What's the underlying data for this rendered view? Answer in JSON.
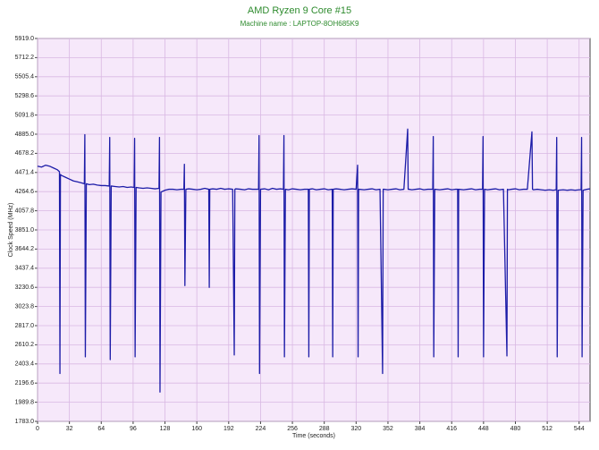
{
  "chart_data": {
    "type": "line",
    "title": "AMD Ryzen 9 Core #15",
    "subtitle": "Machine name : LAPTOP-8OH685K9",
    "x_label": "Time (seconds)",
    "y_label": "Clock Speed (MHz)",
    "color": "#1c1ca8",
    "grid": true,
    "xlim": [
      0,
      555
    ],
    "xticks": [
      0,
      32,
      64,
      96,
      128,
      160,
      192,
      224,
      256,
      288,
      320,
      352,
      384,
      416,
      448,
      480,
      512,
      544
    ],
    "ylim": [
      1783,
      5919
    ],
    "yticks": [
      {
        "value": 1783,
        "label": "1783.0"
      },
      {
        "value": 1989.8,
        "label": "1989.8"
      },
      {
        "value": 2196.6,
        "label": "2196.6"
      },
      {
        "value": 2403.4,
        "label": "2403.4"
      },
      {
        "value": 2610.2,
        "label": "2610.2"
      },
      {
        "value": 2817,
        "label": "2817.0"
      },
      {
        "value": 3023.8,
        "label": "3023.8"
      },
      {
        "value": 3230.6,
        "label": "3230.6"
      },
      {
        "value": 3437.4,
        "label": "3437.4"
      },
      {
        "value": 3644.2,
        "label": "3644.2"
      },
      {
        "value": 3851,
        "label": "3851.0"
      },
      {
        "value": 4057.8,
        "label": "4057.8"
      },
      {
        "value": 4264.6,
        "label": "4264.6"
      },
      {
        "value": 4471.4,
        "label": "4471.4"
      },
      {
        "value": 4678.2,
        "label": "4678.2"
      },
      {
        "value": 4885,
        "label": "4885.0"
      },
      {
        "value": 5091.8,
        "label": "5091.8"
      },
      {
        "value": 5298.6,
        "label": "5298.6"
      },
      {
        "value": 5505.4,
        "label": "5505.4"
      },
      {
        "value": 5712.2,
        "label": "5712.2"
      },
      {
        "value": 5919,
        "label": "5919.0"
      }
    ],
    "x": [
      0,
      4,
      8,
      12,
      16,
      20,
      22,
      22.5,
      23,
      24,
      28,
      32,
      36,
      40,
      44,
      47,
      47.5,
      48,
      49,
      52,
      56,
      60,
      64,
      68,
      72,
      72.5,
      73,
      74,
      78,
      82,
      86,
      90,
      94,
      97,
      97.5,
      98,
      99,
      102,
      106,
      110,
      114,
      118,
      122,
      122.5,
      123,
      124,
      128,
      132,
      136,
      140,
      144,
      147,
      147.5,
      148,
      149,
      152,
      156,
      160,
      164,
      168,
      172,
      172.5,
      173,
      176,
      180,
      184,
      188,
      192,
      196,
      197.6,
      198.2,
      199,
      204,
      208,
      212,
      216,
      220,
      222,
      222.5,
      223,
      224,
      228,
      232,
      236,
      240,
      244,
      247,
      247.5,
      248,
      249,
      252,
      256,
      260,
      264,
      268,
      272,
      272.5,
      273,
      276,
      280,
      284,
      288,
      292,
      296,
      296.5,
      297,
      300,
      304,
      308,
      312,
      316,
      320,
      321.5,
      322,
      322.5,
      323,
      328,
      332,
      336,
      340,
      344,
      346.6,
      347.2,
      348,
      352,
      356,
      360,
      364,
      368,
      371.8,
      372.3,
      373,
      376,
      380,
      384,
      388,
      392,
      397,
      397.5,
      398,
      399,
      404,
      408,
      412,
      416,
      420,
      422,
      422.5,
      423,
      428,
      432,
      436,
      440,
      444,
      447,
      447.5,
      448,
      449,
      452,
      456,
      460,
      464,
      468,
      471.5,
      472,
      473,
      476,
      480,
      484,
      488,
      492,
      496.6,
      497.2,
      498,
      502,
      506,
      510,
      514,
      518,
      521,
      521.5,
      522,
      523,
      528,
      532,
      536,
      540,
      544,
      546,
      546.5,
      547,
      548,
      552,
      555
    ],
    "values": [
      4540,
      4530,
      4550,
      4540,
      4520,
      4500,
      4480,
      2300,
      4450,
      4440,
      4420,
      4400,
      4380,
      4370,
      4360,
      4350,
      4880,
      2480,
      4350,
      4340,
      4345,
      4335,
      4330,
      4330,
      4325,
      4850,
      2450,
      4325,
      4320,
      4315,
      4320,
      4310,
      4315,
      4310,
      4840,
      2480,
      4310,
      4305,
      4300,
      4305,
      4300,
      4295,
      4300,
      4850,
      2100,
      4260,
      4280,
      4290,
      4290,
      4285,
      4290,
      4290,
      4560,
      3250,
      4290,
      4295,
      4290,
      4285,
      4290,
      4300,
      4290,
      3230,
      4290,
      4295,
      4290,
      4300,
      4290,
      4295,
      4290,
      2500,
      4290,
      4295,
      4290,
      4285,
      4295,
      4290,
      4290,
      4290,
      4870,
      2300,
      4290,
      4295,
      4285,
      4300,
      4290,
      4295,
      4290,
      4870,
      2480,
      4290,
      4285,
      4295,
      4290,
      4285,
      4290,
      4290,
      2480,
      4290,
      4295,
      4285,
      4290,
      4295,
      4285,
      4290,
      2480,
      4290,
      4295,
      4290,
      4285,
      4290,
      4295,
      4290,
      4550,
      2480,
      4290,
      4290,
      4285,
      4290,
      4295,
      4285,
      4290,
      2300,
      4290,
      4290,
      4285,
      4290,
      4295,
      4285,
      4290,
      4940,
      4290,
      4290,
      4285,
      4290,
      4295,
      4285,
      4290,
      4290,
      4860,
      2480,
      4290,
      4285,
      4290,
      4295,
      4285,
      4290,
      4290,
      2480,
      4290,
      4285,
      4290,
      4295,
      4285,
      4290,
      4290,
      4860,
      2480,
      4290,
      4285,
      4290,
      4295,
      4285,
      4290,
      2490,
      4290,
      4285,
      4290,
      4295,
      4285,
      4290,
      4290,
      4910,
      4290,
      4285,
      4290,
      4285,
      4280,
      4285,
      4280,
      4285,
      4850,
      2480,
      4280,
      4285,
      4280,
      4285,
      4280,
      4285,
      4285,
      4850,
      2480,
      4280,
      4290,
      4295
    ]
  }
}
